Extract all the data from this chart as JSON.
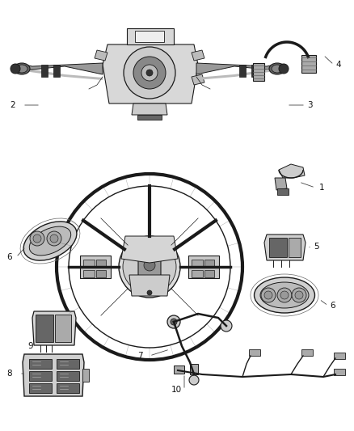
{
  "bg_color": "#ffffff",
  "line_color": "#1a1a1a",
  "gray_dark": "#333333",
  "gray_mid": "#666666",
  "gray_light": "#aaaaaa",
  "gray_fill": "#d8d8d8",
  "figsize": [
    4.38,
    5.33
  ],
  "dpi": 100,
  "label_fontsize": 7.5,
  "label_color": "#111111"
}
